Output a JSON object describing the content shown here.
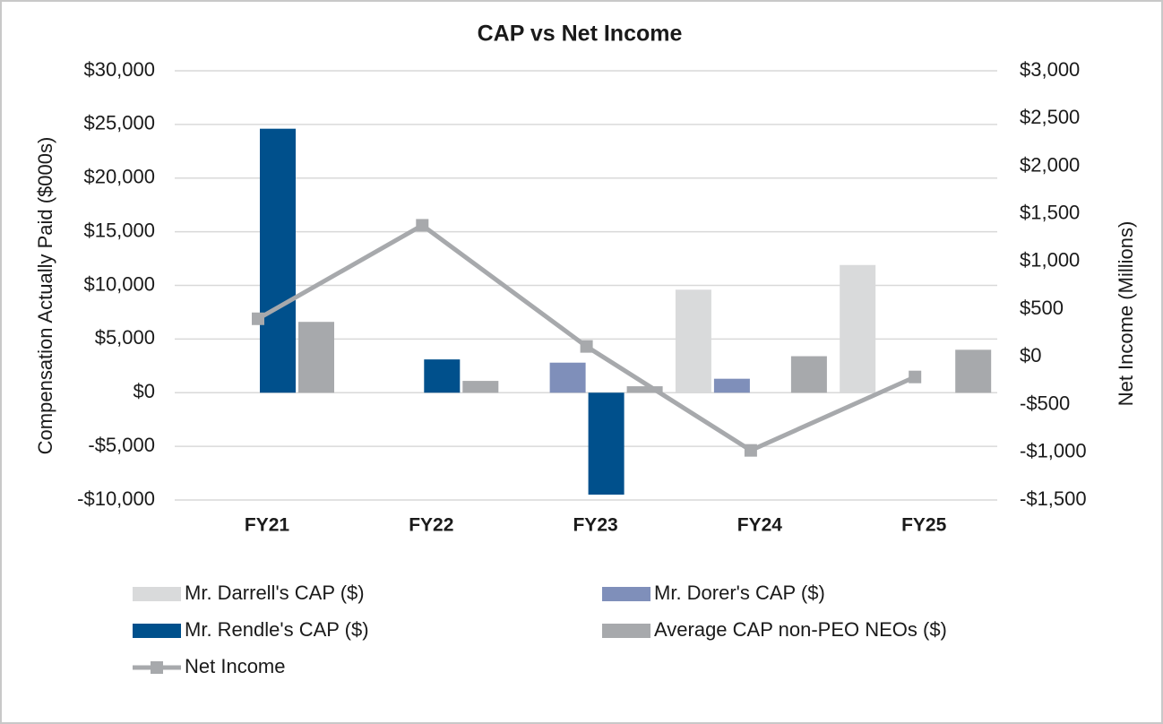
{
  "chart_data": {
    "type": "bar-line",
    "title": "CAP vs Net Income",
    "y_label": "Compensation Actually Paid ($000s)",
    "y2_label": "Net Income (Millions)",
    "categories": [
      "FY21",
      "FY22",
      "FY23",
      "FY24",
      "FY25"
    ],
    "series": [
      {
        "name": "Mr. Darrell's CAP ($)",
        "type": "bar",
        "color": "#d9dadb",
        "values": [
          null,
          null,
          null,
          9600,
          11900
        ]
      },
      {
        "name": "Mr. Dorer's CAP ($)",
        "type": "bar",
        "color": "#7f8fba",
        "values": [
          null,
          null,
          2800,
          1300,
          null
        ]
      },
      {
        "name": "Mr. Rendle's CAP ($)",
        "type": "bar",
        "color": "#00508c",
        "values": [
          24600,
          3100,
          -9500,
          null,
          null
        ]
      },
      {
        "name": "Average CAP non-PEO NEOs ($)",
        "type": "bar",
        "color": "#a7a9ac",
        "values": [
          6600,
          1100,
          600,
          3400,
          4000
        ]
      },
      {
        "name": "Net Income",
        "type": "line",
        "axis": "y2",
        "color": "#a7a9ac",
        "values": [
          400,
          1380,
          110,
          -980,
          -210
        ]
      }
    ],
    "ylim": [
      -10000,
      30000
    ],
    "yticks": [
      {
        "value": -10000,
        "label": "-$10,000"
      },
      {
        "value": -5000,
        "label": "-$5,000"
      },
      {
        "value": 0,
        "label": "$0"
      },
      {
        "value": 5000,
        "label": "$5,000"
      },
      {
        "value": 10000,
        "label": "$10,000"
      },
      {
        "value": 15000,
        "label": "$15,000"
      },
      {
        "value": 20000,
        "label": "$20,000"
      },
      {
        "value": 25000,
        "label": "$25,000"
      },
      {
        "value": 30000,
        "label": "$30,000"
      }
    ],
    "y2lim": [
      -1500,
      3000
    ],
    "y2ticks": [
      {
        "value": -1500,
        "label": "-$1,500"
      },
      {
        "value": -1000,
        "label": "-$1,000"
      },
      {
        "value": -500,
        "label": "-$500"
      },
      {
        "value": 0,
        "label": "$0"
      },
      {
        "value": 500,
        "label": "$500"
      },
      {
        "value": 1000,
        "label": "$1,000"
      },
      {
        "value": 1500,
        "label": "$1,500"
      },
      {
        "value": 2000,
        "label": "$2,000"
      },
      {
        "value": 2500,
        "label": "$2,500"
      },
      {
        "value": 3000,
        "label": "$3,000"
      }
    ],
    "grid": true,
    "legend": "bottom"
  }
}
